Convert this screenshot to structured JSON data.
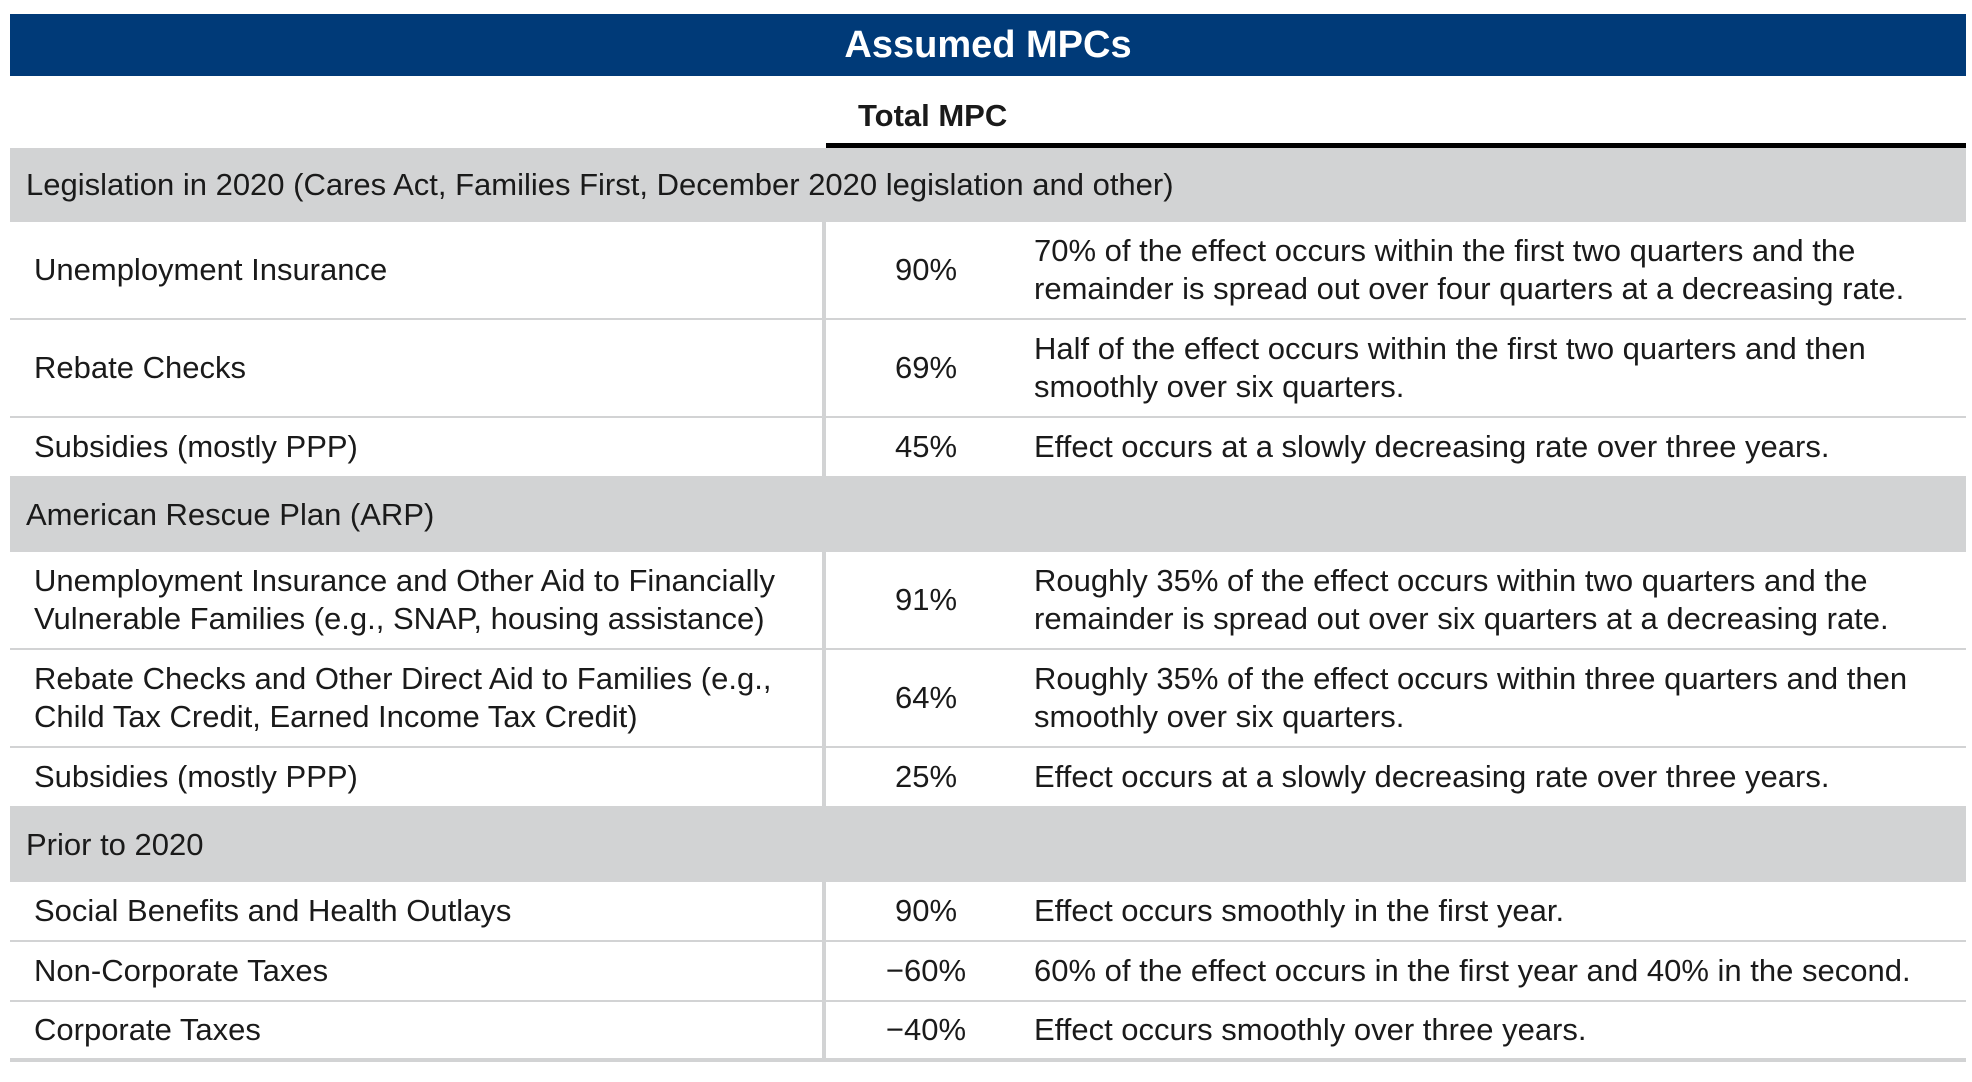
{
  "title": "Assumed MPCs",
  "column_header": "Total MPC",
  "sections": [
    {
      "heading": "Legislation in 2020 (Cares Act, Families First, December 2020 legislation and other)",
      "rows": [
        {
          "label": "Unemployment Insurance",
          "mpc": "90%",
          "desc": "70% of the effect occurs within the first two quarters and the remainder is spread out over four quarters at a decreasing rate."
        },
        {
          "label": "Rebate Checks",
          "mpc": "69%",
          "desc": "Half of the effect occurs within the first two quarters and then smoothly over six quarters."
        },
        {
          "label": "Subsidies (mostly PPP)",
          "mpc": "45%",
          "desc": "Effect occurs at a slowly decreasing rate over three years."
        }
      ]
    },
    {
      "heading": "American Rescue Plan (ARP)",
      "rows": [
        {
          "label": "Unemployment Insurance and Other Aid to Financially Vulnerable Families (e.g., SNAP, housing assistance)",
          "mpc": "91%",
          "desc": "Roughly 35% of the effect occurs within two quarters and the remainder is spread out over six quarters at a decreasing rate."
        },
        {
          "label": "Rebate Checks and Other Direct Aid to Families (e.g., Child Tax Credit, Earned Income Tax Credit)",
          "mpc": "64%",
          "desc": "Roughly 35% of the effect occurs within three quarters and then smoothly over six quarters."
        },
        {
          "label": "Subsidies (mostly PPP)",
          "mpc": "25%",
          "desc": "Effect occurs at a slowly decreasing rate over three years."
        }
      ]
    },
    {
      "heading": "Prior to 2020",
      "rows": [
        {
          "label": "Social Benefits and Health Outlays",
          "mpc": "90%",
          "desc": "Effect occurs smoothly in the first year."
        },
        {
          "label": "Non-Corporate Taxes",
          "mpc": "−60%",
          "desc": "60% of the effect occurs in the first year and 40% in the second."
        },
        {
          "label": "Corporate Taxes",
          "mpc": "−40%",
          "desc": "Effect occurs smoothly over three years."
        }
      ]
    }
  ],
  "colors": {
    "header_bg": "#003a78",
    "section_bg": "#d2d3d4"
  }
}
